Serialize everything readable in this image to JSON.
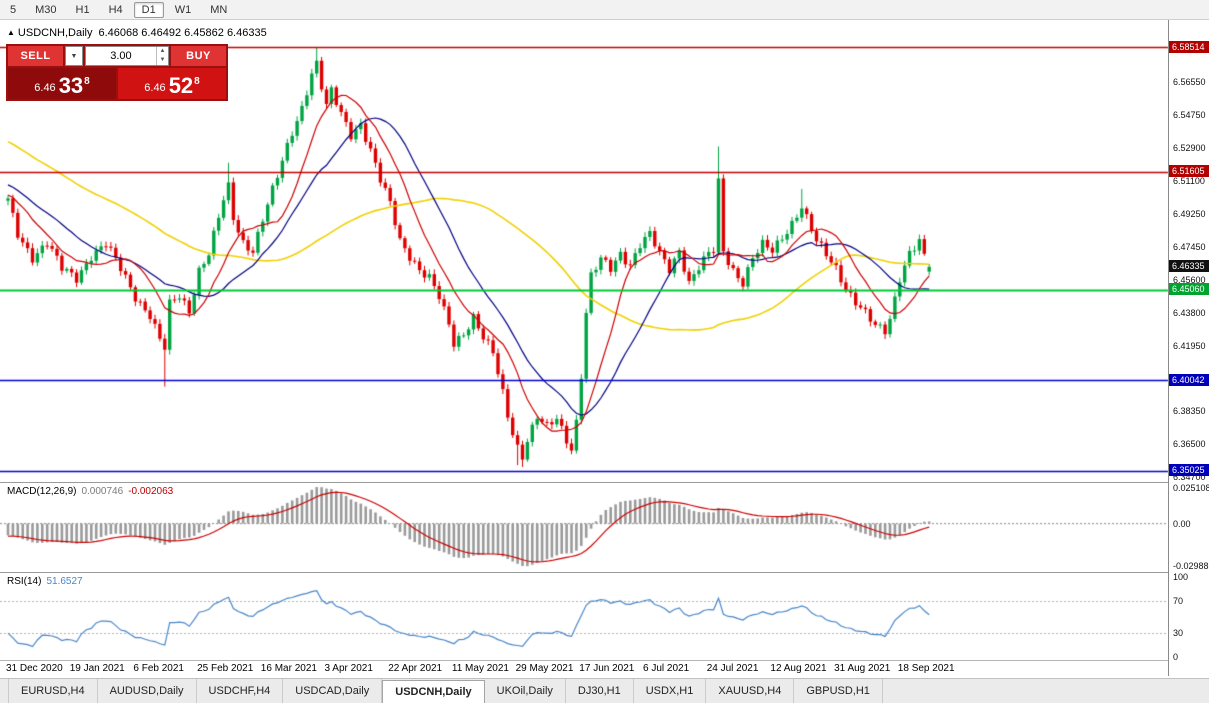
{
  "toolbar": {
    "timeframes": [
      "5",
      "M30",
      "H1",
      "H4",
      "D1",
      "W1",
      "MN"
    ],
    "active": "D1"
  },
  "icons": {
    "collapse": "▲",
    "chevron_down": "▼",
    "spinner_up": "▲",
    "spinner_down": "▼"
  },
  "chart": {
    "title": "USDCNH,Daily",
    "ohlc_text": "6.46068 6.46492 6.45862 6.46335"
  },
  "trade_panel": {
    "sell_label": "SELL",
    "buy_label": "BUY",
    "volume": "3.00",
    "sell_price": {
      "base": "6.46",
      "pips": "33",
      "sup": "8"
    },
    "buy_price": {
      "base": "6.46",
      "pips": "52",
      "sup": "8"
    }
  },
  "price_axis": {
    "labels": [
      "6.56550",
      "6.54750",
      "6.52900",
      "6.51100",
      "6.49250",
      "6.47450",
      "6.45600",
      "6.43800",
      "6.41950",
      "6.40150",
      "6.38350",
      "6.36500",
      "6.34700"
    ],
    "badges": [
      {
        "text": "6.58514",
        "bg": "#b20000"
      },
      {
        "text": "6.51605",
        "bg": "#b20000"
      },
      {
        "text": "6.46335",
        "bg": "#111111"
      },
      {
        "text": "6.45060",
        "bg": "#00a32e"
      },
      {
        "text": "6.40042",
        "bg": "#0000bb"
      },
      {
        "text": "6.35025",
        "bg": "#0000bb"
      }
    ]
  },
  "date_axis": {
    "labels": [
      "31 Dec 2020",
      "19 Jan 2021",
      "6 Feb 2021",
      "25 Feb 2021",
      "16 Mar 2021",
      "3 Apr 2021",
      "22 Apr 2021",
      "11 May 2021",
      "29 May 2021",
      "17 Jun 2021",
      "6 Jul 2021",
      "24 Jul 2021",
      "12 Aug 2021",
      "31 Aug 2021",
      "18 Sep 2021"
    ],
    "bars_per_label": 13
  },
  "tabs": [
    {
      "label": "EURUSD,H4",
      "active": false
    },
    {
      "label": "AUDUSD,Daily",
      "active": false
    },
    {
      "label": "USDCHF,H4",
      "active": false
    },
    {
      "label": "USDCAD,Daily",
      "active": false
    },
    {
      "label": "USDCNH,Daily",
      "active": true
    },
    {
      "label": "UKOil,Daily",
      "active": false
    },
    {
      "label": "DJ30,H1",
      "active": false
    },
    {
      "label": "USDX,H1",
      "active": false
    },
    {
      "label": "XAUUSD,H4",
      "active": false
    },
    {
      "label": "GBPUSD,H1",
      "active": false
    }
  ],
  "chart_data": {
    "type": "candlestick",
    "symbol": "USDCNH",
    "timeframe": "Daily",
    "last_ohlc": {
      "open": 6.46068,
      "high": 6.46492,
      "low": 6.45862,
      "close": 6.46335
    },
    "bar_count": 189,
    "prehistory_bars": 60,
    "up_color": "#00a443",
    "down_color": "#dd0000",
    "anchors": [
      [
        -60,
        6.585
      ],
      [
        -45,
        6.558
      ],
      [
        -30,
        6.535
      ],
      [
        -15,
        6.515
      ],
      [
        -5,
        6.503
      ],
      [
        0,
        6.5
      ],
      [
        2,
        6.481
      ],
      [
        5,
        6.469
      ],
      [
        8,
        6.477
      ],
      [
        11,
        6.462
      ],
      [
        14,
        6.457
      ],
      [
        17,
        6.47
      ],
      [
        20,
        6.476
      ],
      [
        23,
        6.462
      ],
      [
        26,
        6.447
      ],
      [
        29,
        6.437
      ],
      [
        31,
        6.423
      ],
      [
        32,
        6.418
      ],
      [
        33,
        6.442
      ],
      [
        35,
        6.447
      ],
      [
        37,
        6.439
      ],
      [
        39,
        6.462
      ],
      [
        41,
        6.471
      ],
      [
        44,
        6.5
      ],
      [
        45,
        6.507
      ],
      [
        46,
        6.49
      ],
      [
        48,
        6.477
      ],
      [
        50,
        6.473
      ],
      [
        52,
        6.49
      ],
      [
        55,
        6.513
      ],
      [
        58,
        6.538
      ],
      [
        60,
        6.552
      ],
      [
        62,
        6.571
      ],
      [
        63,
        6.576
      ],
      [
        64,
        6.563
      ],
      [
        65,
        6.552
      ],
      [
        66,
        6.56
      ],
      [
        68,
        6.548
      ],
      [
        70,
        6.537
      ],
      [
        72,
        6.543
      ],
      [
        74,
        6.528
      ],
      [
        76,
        6.511
      ],
      [
        78,
        6.498
      ],
      [
        80,
        6.478
      ],
      [
        82,
        6.47
      ],
      [
        84,
        6.462
      ],
      [
        86,
        6.457
      ],
      [
        88,
        6.446
      ],
      [
        90,
        6.431
      ],
      [
        91,
        6.421
      ],
      [
        93,
        6.427
      ],
      [
        95,
        6.436
      ],
      [
        97,
        6.424
      ],
      [
        99,
        6.415
      ],
      [
        101,
        6.393
      ],
      [
        102,
        6.381
      ],
      [
        103,
        6.372
      ],
      [
        104,
        6.364
      ],
      [
        105,
        6.359
      ],
      [
        106,
        6.368
      ],
      [
        108,
        6.38
      ],
      [
        110,
        6.374
      ],
      [
        112,
        6.379
      ],
      [
        114,
        6.368
      ],
      [
        115,
        6.363
      ],
      [
        116,
        6.378
      ],
      [
        117,
        6.404
      ],
      [
        118,
        6.438
      ],
      [
        119,
        6.458
      ],
      [
        121,
        6.467
      ],
      [
        123,
        6.462
      ],
      [
        125,
        6.471
      ],
      [
        127,
        6.465
      ],
      [
        129,
        6.476
      ],
      [
        131,
        6.481
      ],
      [
        133,
        6.47
      ],
      [
        135,
        6.462
      ],
      [
        137,
        6.473
      ],
      [
        139,
        6.455
      ],
      [
        141,
        6.463
      ],
      [
        143,
        6.47
      ],
      [
        144,
        6.472
      ],
      [
        145,
        6.51
      ],
      [
        146,
        6.472
      ],
      [
        148,
        6.462
      ],
      [
        150,
        6.455
      ],
      [
        152,
        6.468
      ],
      [
        154,
        6.475
      ],
      [
        156,
        6.472
      ],
      [
        158,
        6.48
      ],
      [
        160,
        6.488
      ],
      [
        162,
        6.497
      ],
      [
        163,
        6.49
      ],
      [
        165,
        6.477
      ],
      [
        167,
        6.47
      ],
      [
        169,
        6.463
      ],
      [
        171,
        6.452
      ],
      [
        173,
        6.444
      ],
      [
        175,
        6.437
      ],
      [
        177,
        6.43
      ],
      [
        179,
        6.428
      ],
      [
        180,
        6.435
      ],
      [
        182,
        6.458
      ],
      [
        184,
        6.471
      ],
      [
        186,
        6.477
      ],
      [
        187,
        6.468
      ],
      [
        188,
        6.4634
      ]
    ],
    "overrides": {
      "32": {
        "l": 6.397
      },
      "45": {
        "h": 6.521
      },
      "63": {
        "h": 6.5851
      },
      "104": {
        "l": 6.3535
      },
      "105": {
        "l": 6.3525
      },
      "145": {
        "h": 6.53
      },
      "162": {
        "h": 6.5065
      },
      "188": {
        "o": 6.46068,
        "h": 6.46492,
        "l": 6.45862,
        "c": 6.46335
      }
    },
    "hlines": [
      {
        "price": 6.58514,
        "color": "#c00000",
        "width": 1.3
      },
      {
        "price": 6.51605,
        "color": "#c00000",
        "width": 1.3
      },
      {
        "price": 6.4506,
        "color": "#00c832",
        "width": 1.8
      },
      {
        "price": 6.40042,
        "color": "#0000cc",
        "width": 1.5
      },
      {
        "price": 6.35025,
        "color": "#0000cc",
        "width": 1.5
      }
    ],
    "ma_lines": [
      {
        "period": 55,
        "color": "#f0d000",
        "width": 1.6
      },
      {
        "period": 20,
        "color": "#000080",
        "width": 1.2
      },
      {
        "period": 10,
        "color": "#cc0000",
        "width": 1.2
      }
    ],
    "macd": {
      "label": "MACD(12,26,9)",
      "value": "0.000746",
      "signal_value": "-0.002063",
      "fast": 12,
      "slow": 26,
      "signal_period": 9,
      "axis": [
        "0.025108",
        "0.00",
        "-0.02988"
      ],
      "hist_color": "#9a9a9a",
      "signal_color": "#cc0000"
    },
    "rsi": {
      "label": "RSI(14)",
      "value": "51.6527",
      "period": 14,
      "axis": [
        100,
        70,
        30,
        0
      ],
      "levels": [
        70,
        30
      ],
      "color": "#4a86c8"
    }
  }
}
